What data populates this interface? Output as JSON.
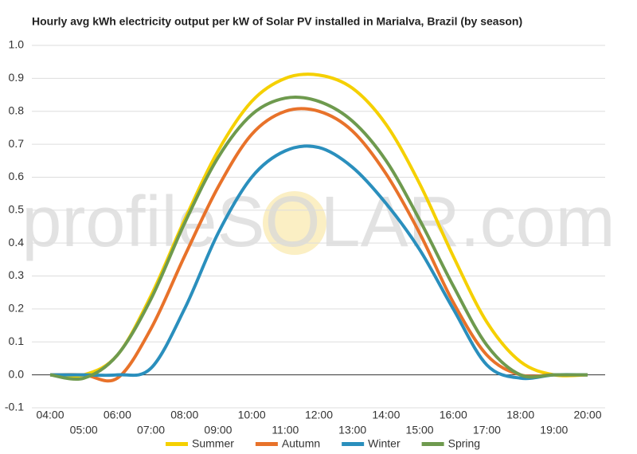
{
  "chart_data": {
    "type": "line",
    "title": "Hourly avg kWh electricity output per kW of Solar PV installed in Marialva, Brazil (by season)",
    "watermark": "profileSOLAR.com",
    "categories": [
      "04:00",
      "05:00",
      "06:00",
      "07:00",
      "08:00",
      "09:00",
      "10:00",
      "11:00",
      "12:00",
      "13:00",
      "14:00",
      "15:00",
      "16:00",
      "17:00",
      "18:00",
      "19:00",
      "20:00"
    ],
    "series": [
      {
        "name": "Summer",
        "color": "#f5d000",
        "values": [
          0,
          0,
          0.06,
          0.24,
          0.47,
          0.68,
          0.83,
          0.9,
          0.91,
          0.87,
          0.76,
          0.58,
          0.36,
          0.16,
          0.04,
          0,
          0
        ]
      },
      {
        "name": "Autumn",
        "color": "#e8722a",
        "values": [
          0,
          0,
          -0.01,
          0.14,
          0.36,
          0.57,
          0.73,
          0.8,
          0.8,
          0.74,
          0.61,
          0.43,
          0.22,
          0.06,
          0,
          0,
          0
        ]
      },
      {
        "name": "Winter",
        "color": "#2a8fbd",
        "values": [
          0,
          0,
          0,
          0.02,
          0.2,
          0.43,
          0.6,
          0.68,
          0.69,
          0.63,
          0.52,
          0.38,
          0.2,
          0.03,
          -0.01,
          0,
          0
        ]
      },
      {
        "name": "Spring",
        "color": "#6e9a4e",
        "values": [
          0,
          -0.01,
          0.06,
          0.23,
          0.46,
          0.66,
          0.79,
          0.84,
          0.83,
          0.77,
          0.65,
          0.47,
          0.27,
          0.09,
          0,
          0,
          0
        ]
      }
    ],
    "ylim": [
      -0.1,
      1.0
    ],
    "yticks": [
      -0.1,
      {
        "value": 0,
        "label": "0.0"
      },
      0.1,
      0.2,
      0.3,
      0.4,
      0.5,
      0.6,
      0.7,
      0.8,
      0.9,
      {
        "value": 1,
        "label": "1.0"
      }
    ],
    "grid": true,
    "legend": "bottom"
  }
}
